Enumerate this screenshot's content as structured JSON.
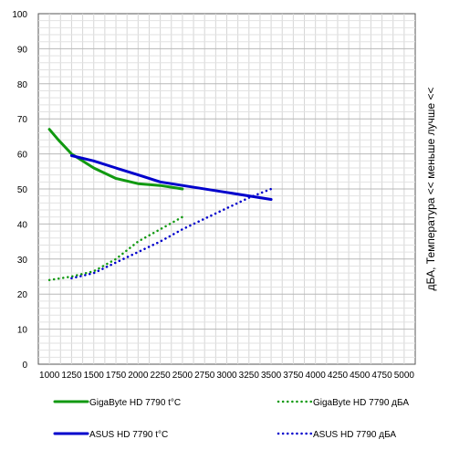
{
  "chart_data": {
    "type": "line",
    "title": "",
    "xlabel": "",
    "ylabel": "дБА, Температура << меньше лучше <<",
    "xlim": [
      875,
      5125
    ],
    "ylim": [
      0,
      100
    ],
    "xticks": [
      1000,
      1250,
      1500,
      1750,
      2000,
      2250,
      2500,
      2750,
      3000,
      3250,
      3500,
      3750,
      4000,
      4250,
      4500,
      4750,
      5000
    ],
    "yticks": [
      0,
      10,
      20,
      30,
      40,
      50,
      60,
      70,
      80,
      90,
      100
    ],
    "grid": true,
    "legend_position": "bottom",
    "series": [
      {
        "name": "GigaByte HD 7790 t°C",
        "color": "#119911",
        "style": "solid",
        "x": [
          1000,
          1100,
          1250,
          1500,
          1750,
          2000,
          2250,
          2500
        ],
        "y": [
          67,
          64,
          60,
          56,
          53,
          51.5,
          51,
          50
        ]
      },
      {
        "name": "GigaByte HD 7790 дБА",
        "color": "#119911",
        "style": "dotted",
        "x": [
          1000,
          1250,
          1500,
          1750,
          2000,
          2250,
          2500
        ],
        "y": [
          24,
          25,
          26.5,
          30,
          35,
          38.5,
          42
        ]
      },
      {
        "name": "ASUS HD 7790 t°C",
        "color": "#0000cc",
        "style": "solid",
        "x": [
          1250,
          1500,
          1750,
          2000,
          2250,
          2500,
          3000,
          3500
        ],
        "y": [
          59.5,
          58,
          56,
          54,
          52,
          51,
          49,
          47
        ]
      },
      {
        "name": "ASUS HD 7790 дБА",
        "color": "#0000cc",
        "style": "dotted",
        "x": [
          1250,
          1500,
          1750,
          2000,
          2250,
          2500,
          2750,
          3000,
          3250,
          3500
        ],
        "y": [
          24.5,
          26,
          29,
          32,
          35,
          38.5,
          41.5,
          44.5,
          47.5,
          50
        ]
      }
    ]
  }
}
